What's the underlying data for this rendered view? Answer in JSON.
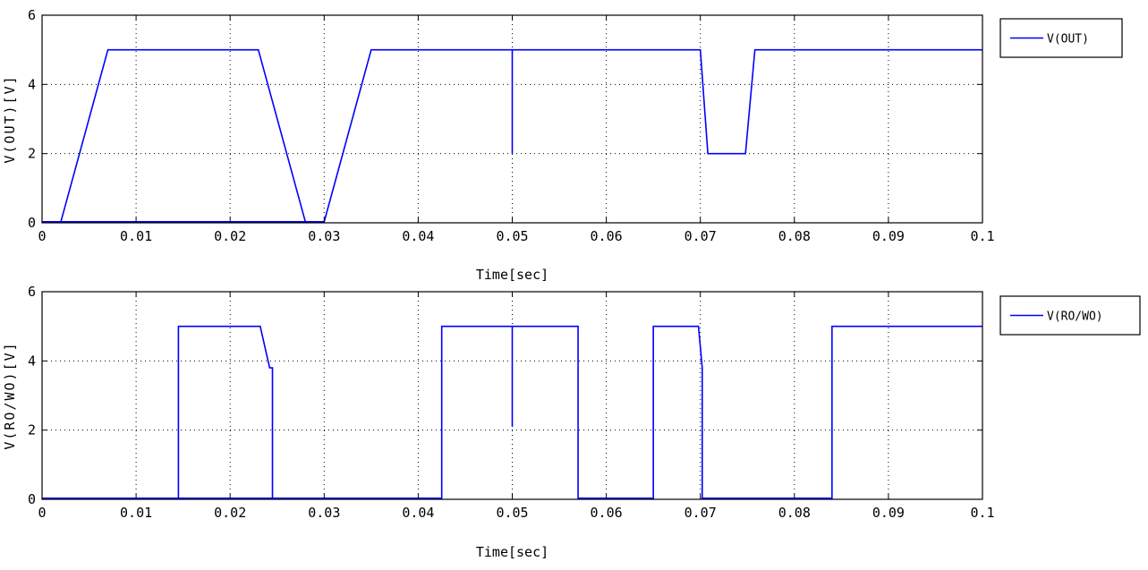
{
  "colors": {
    "line": "#0000ff",
    "axes": "#000000",
    "grid": "#000000",
    "background": "#ffffff"
  },
  "chart_data": [
    {
      "type": "line",
      "xlabel": "Time[sec]",
      "ylabel": "V(OUT)[V]",
      "xlim": [
        0,
        0.1
      ],
      "ylim": [
        0,
        6
      ],
      "xticks": [
        0,
        0.01,
        0.02,
        0.03,
        0.04,
        0.05,
        0.06,
        0.07,
        0.08,
        0.09,
        0.1
      ],
      "xtick_labels": [
        "0",
        "0.01",
        "0.02",
        "0.03",
        "0.04",
        "0.05",
        "0.06",
        "0.07",
        "0.08",
        "0.09",
        "0.1"
      ],
      "yticks": [
        0,
        2,
        4,
        6
      ],
      "ytick_labels": [
        "0",
        "2",
        "4",
        "6"
      ],
      "grid": true,
      "legend_position": "outside-right",
      "series": [
        {
          "name": "V(OUT)",
          "color": "#0000ff",
          "points": [
            [
              0,
              0.03
            ],
            [
              0.002,
              0.03
            ],
            [
              0.007,
              5.0
            ],
            [
              0.023,
              5.0
            ],
            [
              0.028,
              0.03
            ],
            [
              0.03,
              0.03
            ],
            [
              0.035,
              5.0
            ],
            [
              0.05,
              5.0
            ],
            [
              0.05,
              2.0
            ],
            [
              0.05,
              5.0
            ],
            [
              0.07,
              5.0
            ],
            [
              0.0708,
              2.0
            ],
            [
              0.0748,
              2.0
            ],
            [
              0.0758,
              5.0
            ],
            [
              0.1,
              5.0
            ]
          ],
          "segments": [
            [
              [
                0,
                0.03
              ],
              [
                0.03,
                0.03
              ]
            ]
          ]
        }
      ]
    },
    {
      "type": "line",
      "xlabel": "Time[sec]",
      "ylabel": "V(RO/WO)[V]",
      "xlim": [
        0,
        0.1
      ],
      "ylim": [
        0,
        6
      ],
      "xticks": [
        0,
        0.01,
        0.02,
        0.03,
        0.04,
        0.05,
        0.06,
        0.07,
        0.08,
        0.09,
        0.1
      ],
      "xtick_labels": [
        "0",
        "0.01",
        "0.02",
        "0.03",
        "0.04",
        "0.05",
        "0.06",
        "0.07",
        "0.08",
        "0.09",
        "0.1"
      ],
      "yticks": [
        0,
        2,
        4,
        6
      ],
      "ytick_labels": [
        "0",
        "2",
        "4",
        "6"
      ],
      "grid": true,
      "legend_position": "outside-right",
      "series": [
        {
          "name": "V(RO/WO)",
          "color": "#0000ff",
          "points": [
            [
              0,
              0.03
            ],
            [
              0.0145,
              0.03
            ],
            [
              0.0145,
              5.0
            ],
            [
              0.0232,
              5.0
            ],
            [
              0.0242,
              3.8
            ],
            [
              0.0245,
              3.8
            ],
            [
              0.0245,
              0.03
            ],
            [
              0.0425,
              0.03
            ],
            [
              0.0425,
              5.0
            ],
            [
              0.05,
              5.0
            ],
            [
              0.05,
              2.1
            ],
            [
              0.05,
              5.0
            ],
            [
              0.057,
              5.0
            ],
            [
              0.057,
              0.03
            ],
            [
              0.065,
              0.03
            ],
            [
              0.065,
              5.0
            ],
            [
              0.0698,
              5.0
            ],
            [
              0.0702,
              3.8
            ],
            [
              0.0702,
              0.03
            ],
            [
              0.084,
              0.03
            ],
            [
              0.084,
              5.0
            ],
            [
              0.1,
              5.0
            ]
          ],
          "segments": [
            [
              [
                0.0145,
                0.03
              ],
              [
                0.0245,
                0.03
              ]
            ],
            [
              [
                0.0702,
                0.03
              ],
              [
                0.0705,
                0.03
              ]
            ]
          ]
        }
      ]
    }
  ]
}
